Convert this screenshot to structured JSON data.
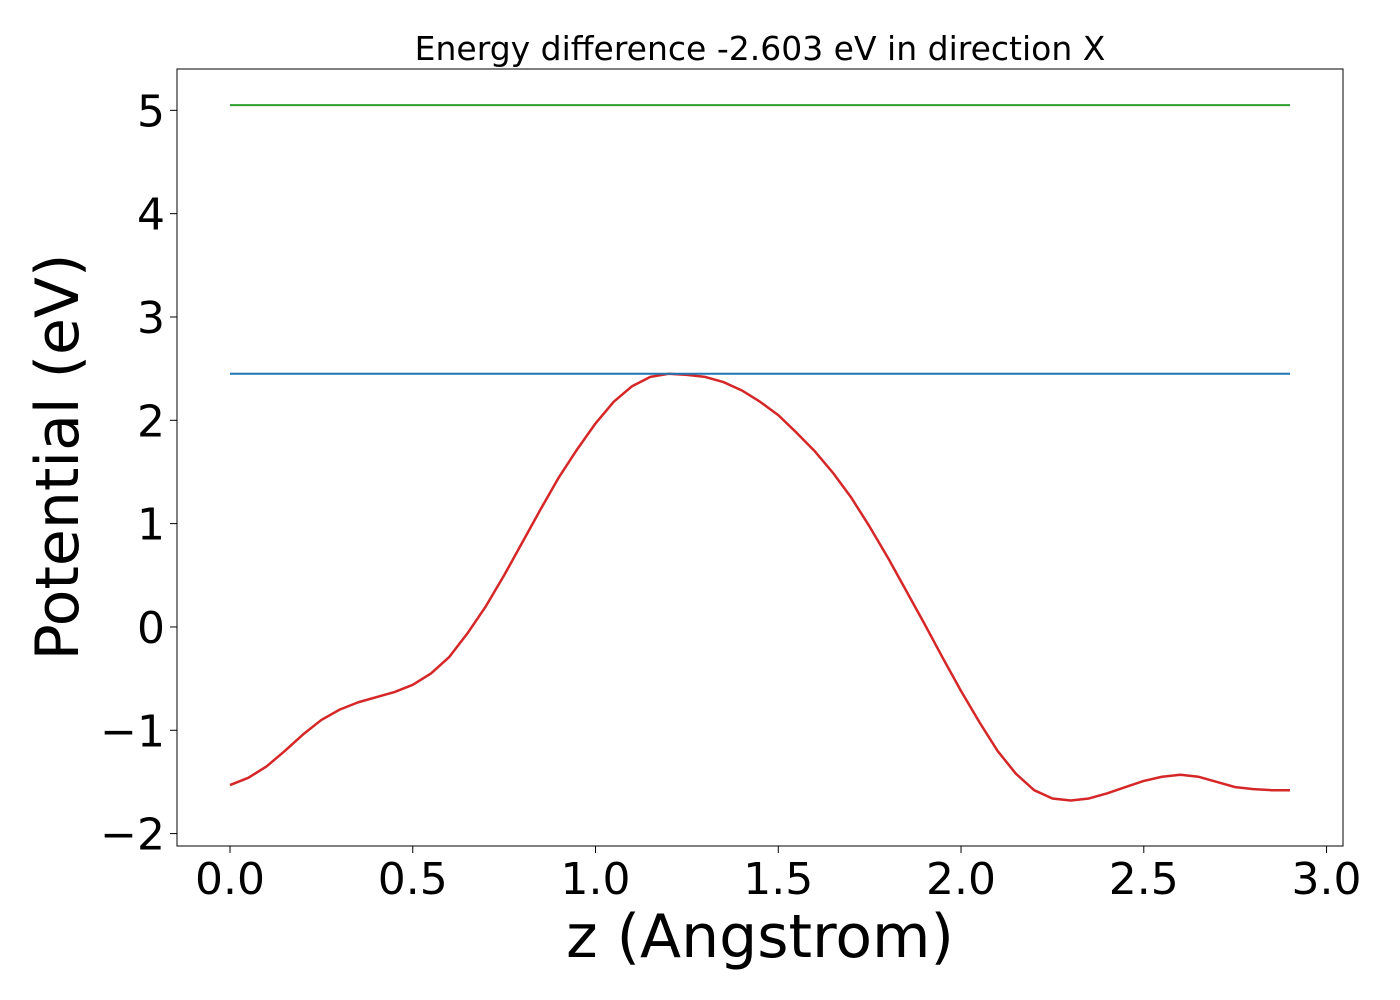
{
  "chart_data": {
    "type": "line",
    "title": "Energy difference -2.603 eV in direction X",
    "xlabel": "z (Angstrom)",
    "ylabel": "Potential (eV)",
    "xlim": [
      -0.145,
      3.045
    ],
    "ylim": [
      -2.12,
      5.4
    ],
    "xticks": [
      0.0,
      0.5,
      1.0,
      1.5,
      2.0,
      2.5,
      3.0
    ],
    "xtick_labels": [
      "0.0",
      "0.5",
      "1.0",
      "1.5",
      "2.0",
      "2.5",
      "3.0"
    ],
    "yticks": [
      -2,
      -1,
      0,
      1,
      2,
      3,
      4,
      5
    ],
    "ytick_labels": [
      "−2",
      "−1",
      "0",
      "1",
      "2",
      "3",
      "4",
      "5"
    ],
    "grid": false,
    "legend": false,
    "series": [
      {
        "color": "#d62728",
        "x": [
          0.0,
          0.05,
          0.1,
          0.15,
          0.2,
          0.25,
          0.3,
          0.35,
          0.4,
          0.45,
          0.5,
          0.55,
          0.6,
          0.65,
          0.7,
          0.75,
          0.8,
          0.85,
          0.9,
          0.95,
          1.0,
          1.05,
          1.1,
          1.15,
          1.2,
          1.25,
          1.3,
          1.35,
          1.4,
          1.45,
          1.5,
          1.55,
          1.6,
          1.65,
          1.7,
          1.75,
          1.8,
          1.85,
          1.9,
          1.95,
          2.0,
          2.05,
          2.1,
          2.15,
          2.2,
          2.25,
          2.3,
          2.35,
          2.4,
          2.45,
          2.5,
          2.55,
          2.6,
          2.65,
          2.7,
          2.75,
          2.8,
          2.85,
          2.9
        ],
        "y": [
          -1.53,
          -1.46,
          -1.35,
          -1.2,
          -1.04,
          -0.9,
          -0.8,
          -0.73,
          -0.68,
          -0.63,
          -0.56,
          -0.45,
          -0.29,
          -0.06,
          0.2,
          0.5,
          0.82,
          1.14,
          1.45,
          1.72,
          1.97,
          2.18,
          2.33,
          2.42,
          2.45,
          2.44,
          2.42,
          2.37,
          2.29,
          2.18,
          2.05,
          1.88,
          1.7,
          1.49,
          1.25,
          0.97,
          0.67,
          0.35,
          0.03,
          -0.3,
          -0.62,
          -0.92,
          -1.2,
          -1.42,
          -1.58,
          -1.66,
          -1.68,
          -1.66,
          -1.61,
          -1.55,
          -1.49,
          -1.45,
          -1.43,
          -1.45,
          -1.5,
          -1.55,
          -1.57,
          -1.58,
          -1.58
        ]
      },
      {
        "color": "#1f77b4",
        "x": [
          0.0,
          2.9
        ],
        "y": [
          2.45,
          2.45
        ]
      },
      {
        "color": "#2ca02c",
        "x": [
          0.0,
          2.9
        ],
        "y": [
          5.05,
          5.05
        ]
      }
    ]
  }
}
